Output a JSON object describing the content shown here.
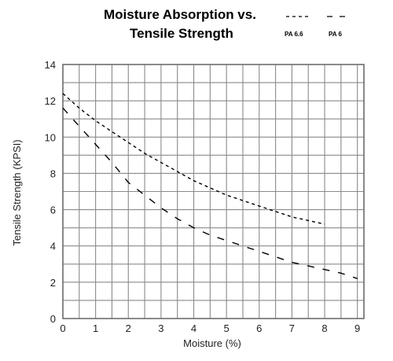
{
  "chart_data": {
    "type": "line",
    "title_lines": [
      "Moisture Absorption vs.",
      "Tensile Strength"
    ],
    "xlabel": "Moisture (%)",
    "ylabel": "Tensile Strength (KPSI)",
    "xlim": [
      0,
      9.2
    ],
    "ylim": [
      0,
      14
    ],
    "xticks": [
      0,
      1,
      2,
      3,
      4,
      5,
      6,
      7,
      8,
      9
    ],
    "yticks": [
      0,
      2,
      4,
      6,
      8,
      10,
      12,
      14
    ],
    "x_gridlines": [
      0,
      0.5,
      1,
      1.5,
      2,
      2.5,
      3,
      3.5,
      4,
      4.5,
      5,
      5.5,
      6,
      6.5,
      7,
      7.5,
      8,
      8.5,
      9,
      9.2
    ],
    "y_gridlines": [
      0,
      1,
      2,
      3,
      4,
      5,
      6,
      7,
      8,
      9,
      10,
      11,
      12,
      13,
      14
    ],
    "grid": true,
    "legend_position": "top-right",
    "series": [
      {
        "name": "PA 6.6",
        "dash": "short",
        "color": "#000000",
        "x": [
          0,
          0.5,
          1,
          1.5,
          2,
          2.5,
          3,
          3.5,
          4,
          4.5,
          5,
          5.5,
          6,
          6.5,
          7,
          7.5,
          8
        ],
        "y": [
          12.4,
          11.6,
          10.9,
          10.3,
          9.7,
          9.1,
          8.6,
          8.1,
          7.6,
          7.2,
          6.8,
          6.5,
          6.2,
          5.9,
          5.6,
          5.4,
          5.2
        ]
      },
      {
        "name": "PA 6",
        "dash": "long",
        "color": "#000000",
        "x": [
          0,
          0.5,
          1,
          1.5,
          2,
          2.5,
          3,
          3.5,
          4,
          4.5,
          5,
          5.5,
          6,
          6.5,
          7,
          7.5,
          8,
          8.5,
          9
        ],
        "y": [
          11.6,
          10.6,
          9.6,
          8.6,
          7.5,
          6.8,
          6.1,
          5.5,
          5.0,
          4.6,
          4.3,
          4.0,
          3.7,
          3.4,
          3.1,
          2.9,
          2.7,
          2.5,
          2.2
        ]
      }
    ]
  },
  "colors": {
    "grid": "#8a8a8a",
    "axis": "#6e6e6e",
    "background": "#ffffff"
  }
}
